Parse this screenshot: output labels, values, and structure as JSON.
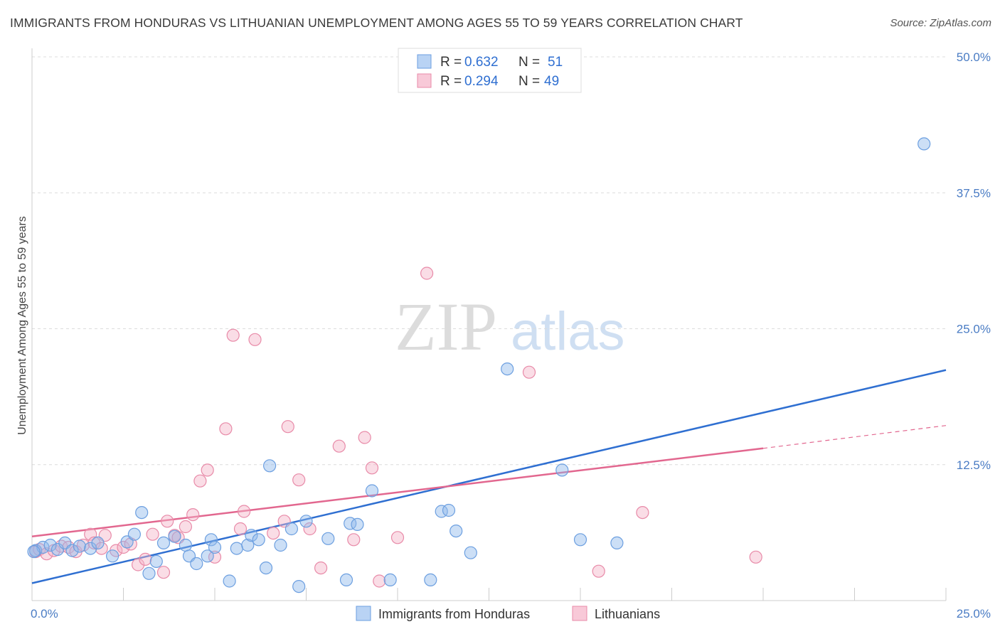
{
  "header": {
    "title": "IMMIGRANTS FROM HONDURAS VS LITHUANIAN UNEMPLOYMENT AMONG AGES 55 TO 59 YEARS CORRELATION CHART",
    "source": "Source: ZipAtlas.com"
  },
  "watermark": {
    "zip": "ZIP",
    "atlas": "atlas"
  },
  "chart_data": {
    "type": "scatter",
    "ylabel": "Unemployment Among Ages 55 to 59 years",
    "xlim": [
      0,
      25
    ],
    "ylim": [
      0,
      50
    ],
    "x_tick_labels": [
      "0.0%",
      "25.0%"
    ],
    "y_ticks": [
      12.5,
      25.0,
      37.5,
      50.0
    ],
    "y_tick_labels": [
      "12.5%",
      "25.0%",
      "37.5%",
      "50.0%"
    ],
    "legend": {
      "r_label": "R = ",
      "n_label": "N = ",
      "entries": [
        {
          "r": "0.632",
          "n": "51"
        },
        {
          "r": "0.294",
          "n": "49"
        }
      ]
    },
    "series": [
      {
        "name": "Immigrants from Honduras",
        "color": "#8fb8ec",
        "stroke": "#6c9fe0",
        "line_color": "#2f6fd1",
        "trend": {
          "x": [
            0,
            25
          ],
          "y": [
            1.6,
            21.2
          ]
        },
        "points": [
          [
            0.1,
            4.6
          ],
          [
            0.3,
            4.9
          ],
          [
            0.5,
            5.1
          ],
          [
            0.7,
            4.7
          ],
          [
            0.9,
            5.3
          ],
          [
            1.1,
            4.6
          ],
          [
            1.3,
            5.0
          ],
          [
            1.6,
            4.8
          ],
          [
            1.8,
            5.3
          ],
          [
            2.2,
            4.1
          ],
          [
            2.6,
            5.4
          ],
          [
            2.8,
            6.1
          ],
          [
            3.0,
            8.1
          ],
          [
            3.2,
            2.5
          ],
          [
            3.4,
            3.6
          ],
          [
            3.6,
            5.3
          ],
          [
            3.9,
            5.9
          ],
          [
            4.2,
            5.1
          ],
          [
            4.3,
            4.1
          ],
          [
            4.5,
            3.4
          ],
          [
            4.8,
            4.1
          ],
          [
            4.9,
            5.6
          ],
          [
            5.0,
            4.9
          ],
          [
            5.4,
            1.8
          ],
          [
            5.6,
            4.8
          ],
          [
            5.9,
            5.1
          ],
          [
            6.0,
            6.0
          ],
          [
            6.2,
            5.6
          ],
          [
            6.4,
            3.0
          ],
          [
            6.5,
            12.4
          ],
          [
            6.8,
            5.1
          ],
          [
            7.1,
            6.6
          ],
          [
            7.3,
            1.3
          ],
          [
            7.5,
            7.3
          ],
          [
            8.1,
            5.7
          ],
          [
            8.6,
            1.9
          ],
          [
            8.7,
            7.1
          ],
          [
            8.9,
            7.0
          ],
          [
            9.3,
            10.1
          ],
          [
            9.8,
            1.9
          ],
          [
            10.9,
            1.9
          ],
          [
            11.2,
            8.2
          ],
          [
            11.4,
            8.3
          ],
          [
            11.6,
            6.4
          ],
          [
            12.0,
            4.4
          ],
          [
            13.0,
            21.3
          ],
          [
            14.5,
            12.0
          ],
          [
            15.0,
            5.6
          ],
          [
            16.0,
            5.3
          ],
          [
            24.4,
            42.0
          ],
          [
            0.05,
            4.5
          ]
        ]
      },
      {
        "name": "Lithuanians",
        "color": "#f5b3c8",
        "stroke": "#e88aa8",
        "line_color": "#e2678f",
        "trend": {
          "x": [
            0,
            20
          ],
          "y": [
            5.9,
            14.0
          ]
        },
        "trend_dashed": {
          "x": [
            20,
            25
          ],
          "y": [
            14.0,
            16.1
          ]
        },
        "points": [
          [
            0.1,
            4.5
          ],
          [
            0.2,
            4.7
          ],
          [
            0.4,
            4.3
          ],
          [
            0.6,
            4.6
          ],
          [
            0.8,
            5.0
          ],
          [
            1.0,
            4.9
          ],
          [
            1.2,
            4.5
          ],
          [
            1.4,
            5.1
          ],
          [
            1.6,
            6.1
          ],
          [
            1.7,
            5.3
          ],
          [
            1.9,
            4.8
          ],
          [
            2.0,
            6.0
          ],
          [
            2.3,
            4.6
          ],
          [
            2.5,
            4.9
          ],
          [
            2.7,
            5.2
          ],
          [
            2.9,
            3.3
          ],
          [
            3.1,
            3.8
          ],
          [
            3.3,
            6.1
          ],
          [
            3.6,
            2.6
          ],
          [
            3.7,
            7.3
          ],
          [
            3.9,
            6.0
          ],
          [
            4.0,
            5.8
          ],
          [
            4.2,
            6.8
          ],
          [
            4.4,
            7.9
          ],
          [
            4.6,
            11.0
          ],
          [
            4.8,
            12.0
          ],
          [
            5.0,
            4.0
          ],
          [
            5.3,
            15.8
          ],
          [
            5.5,
            24.4
          ],
          [
            5.7,
            6.6
          ],
          [
            5.8,
            8.2
          ],
          [
            6.1,
            24.0
          ],
          [
            6.6,
            6.2
          ],
          [
            6.9,
            7.3
          ],
          [
            7.0,
            16.0
          ],
          [
            7.3,
            11.1
          ],
          [
            7.6,
            6.6
          ],
          [
            7.9,
            3.0
          ],
          [
            8.4,
            14.2
          ],
          [
            8.8,
            5.6
          ],
          [
            9.1,
            15.0
          ],
          [
            9.3,
            12.2
          ],
          [
            9.5,
            1.8
          ],
          [
            10.0,
            5.8
          ],
          [
            10.8,
            30.1
          ],
          [
            13.6,
            21.0
          ],
          [
            15.5,
            2.7
          ],
          [
            16.7,
            8.1
          ],
          [
            19.8,
            4.0
          ]
        ]
      }
    ],
    "bottom_legend": [
      "Immigrants from Honduras",
      "Lithuanians"
    ]
  }
}
